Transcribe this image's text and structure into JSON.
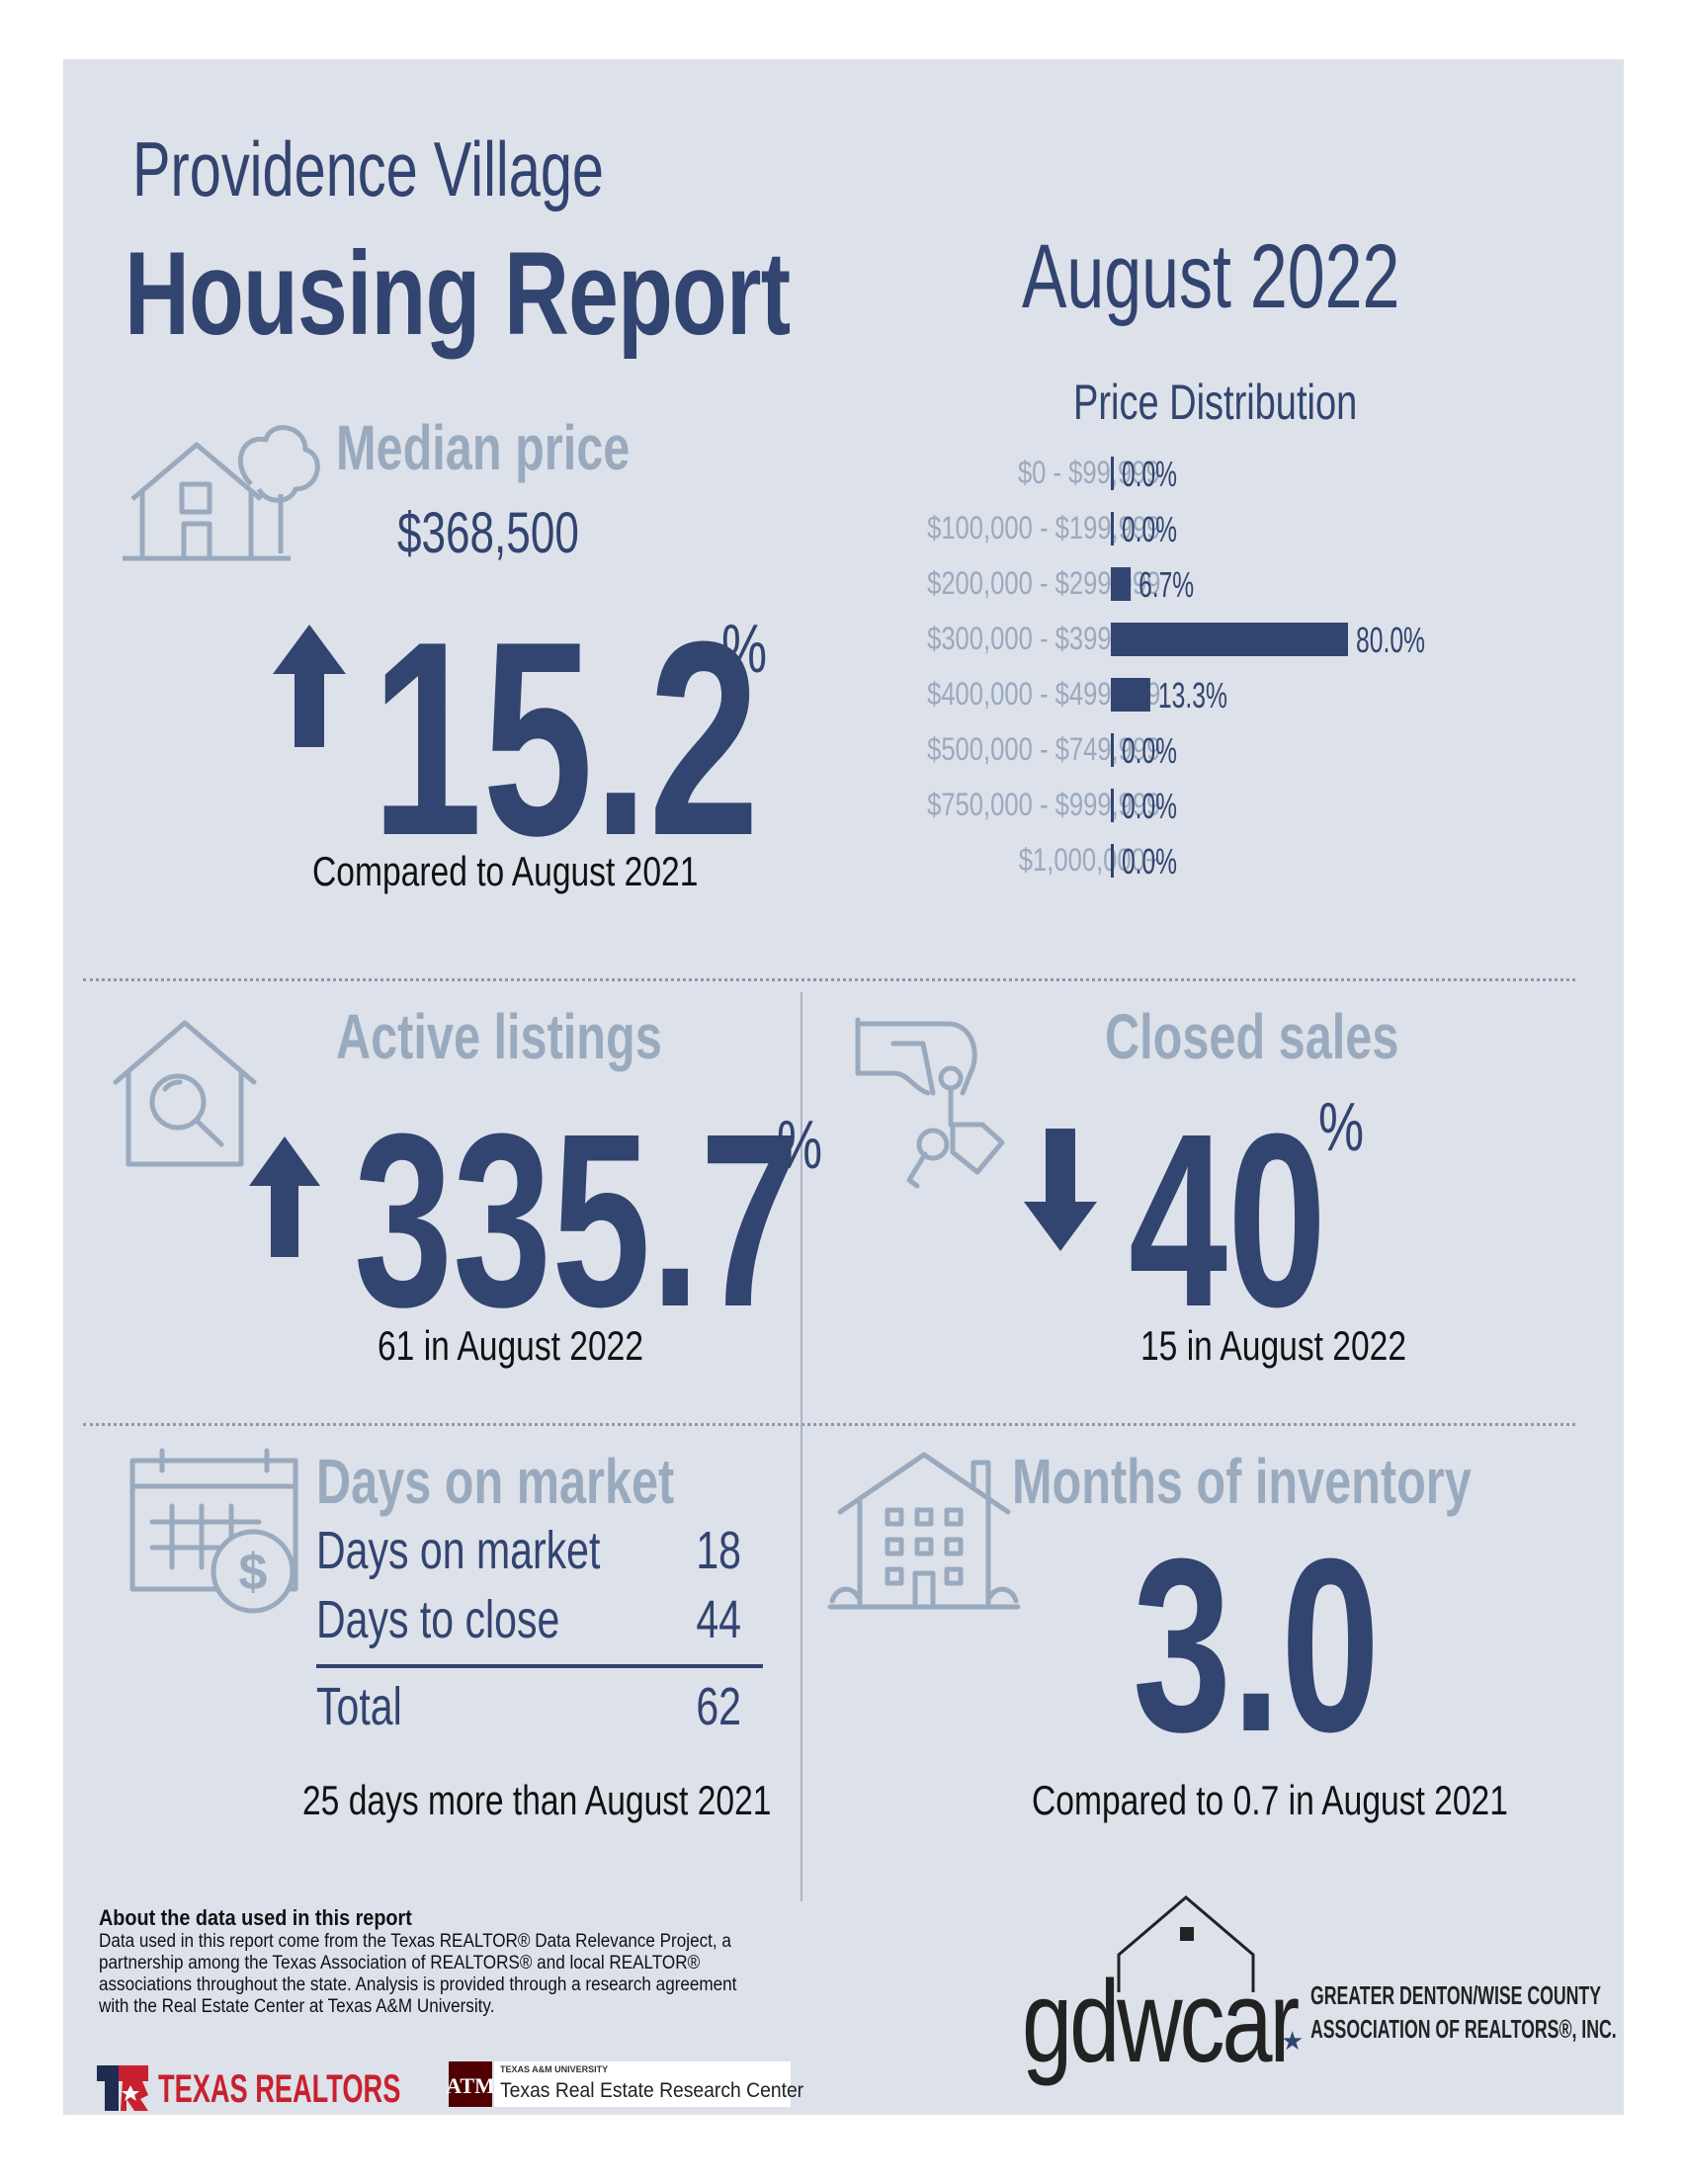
{
  "header": {
    "location": "Providence Village",
    "title": "Housing Report",
    "month": "August 2022"
  },
  "median": {
    "heading": "Median price",
    "price": "$368,500",
    "change": "15.2",
    "percent_sign": "%",
    "direction": "up",
    "caption": "Compared to August 2021"
  },
  "price_distribution": {
    "heading": "Price Distribution",
    "bar_color": "#324470"
  },
  "chart_data": {
    "type": "bar",
    "orientation": "horizontal",
    "title": "Price Distribution",
    "categories": [
      "$0 - $99,999",
      "$100,000 - $199,999",
      "$200,000 - $299,999",
      "$300,000 - $399,999",
      "$400,000 - $499,999",
      "$500,000 - $749,999",
      "$750,000 - $999,999",
      "$1,000,000+"
    ],
    "values": [
      0.0,
      0.0,
      6.7,
      80.0,
      13.3,
      0.0,
      0.0,
      0.0
    ],
    "value_labels": [
      "0.0%",
      "0.0%",
      "6.7%",
      "80.0%",
      "13.3%",
      "0.0%",
      "0.0%",
      "0.0%"
    ],
    "xlim": [
      0,
      80
    ]
  },
  "active": {
    "heading": "Active listings",
    "change": "335.7",
    "percent_sign": "%",
    "direction": "up",
    "caption": "61 in August 2022"
  },
  "closed": {
    "heading": "Closed sales",
    "change": "40",
    "percent_sign": "%",
    "direction": "down",
    "caption": "15 in August 2022"
  },
  "dom": {
    "heading": "Days on market",
    "rows": [
      {
        "label": "Days on market",
        "value": "18"
      },
      {
        "label": "Days to close",
        "value": "44"
      }
    ],
    "total_label": "Total",
    "total_value": "62",
    "caption": "25 days more than August 2021"
  },
  "inventory": {
    "heading": "Months of inventory",
    "value": "3.0",
    "caption": "Compared to 0.7 in August 2021"
  },
  "about": {
    "heading": "About the data used in this report",
    "text": "Data used in this report come from the Texas REALTOR® Data Relevance Project, a partnership among the Texas Association of REALTORS® and local REALTOR® associations throughout the state. Analysis is provided through a research agreement with the Real Estate Center at Texas A&M University."
  },
  "logos": {
    "texas_realtors": "TEXAS REALTORS",
    "tamu_small": "TEXAS A&M UNIVERSITY",
    "tamu_center": "Texas Real Estate Research Center",
    "gdwcar": "gdwcar",
    "gdwcar_line1": "GREATER DENTON/WISE COUNTY",
    "gdwcar_line2": "ASSOCIATION OF REALTORS®, INC."
  },
  "colors": {
    "navy": "#324470",
    "slate": "#9aaabe",
    "panel": "#dde1e9",
    "red": "#c8202e"
  }
}
